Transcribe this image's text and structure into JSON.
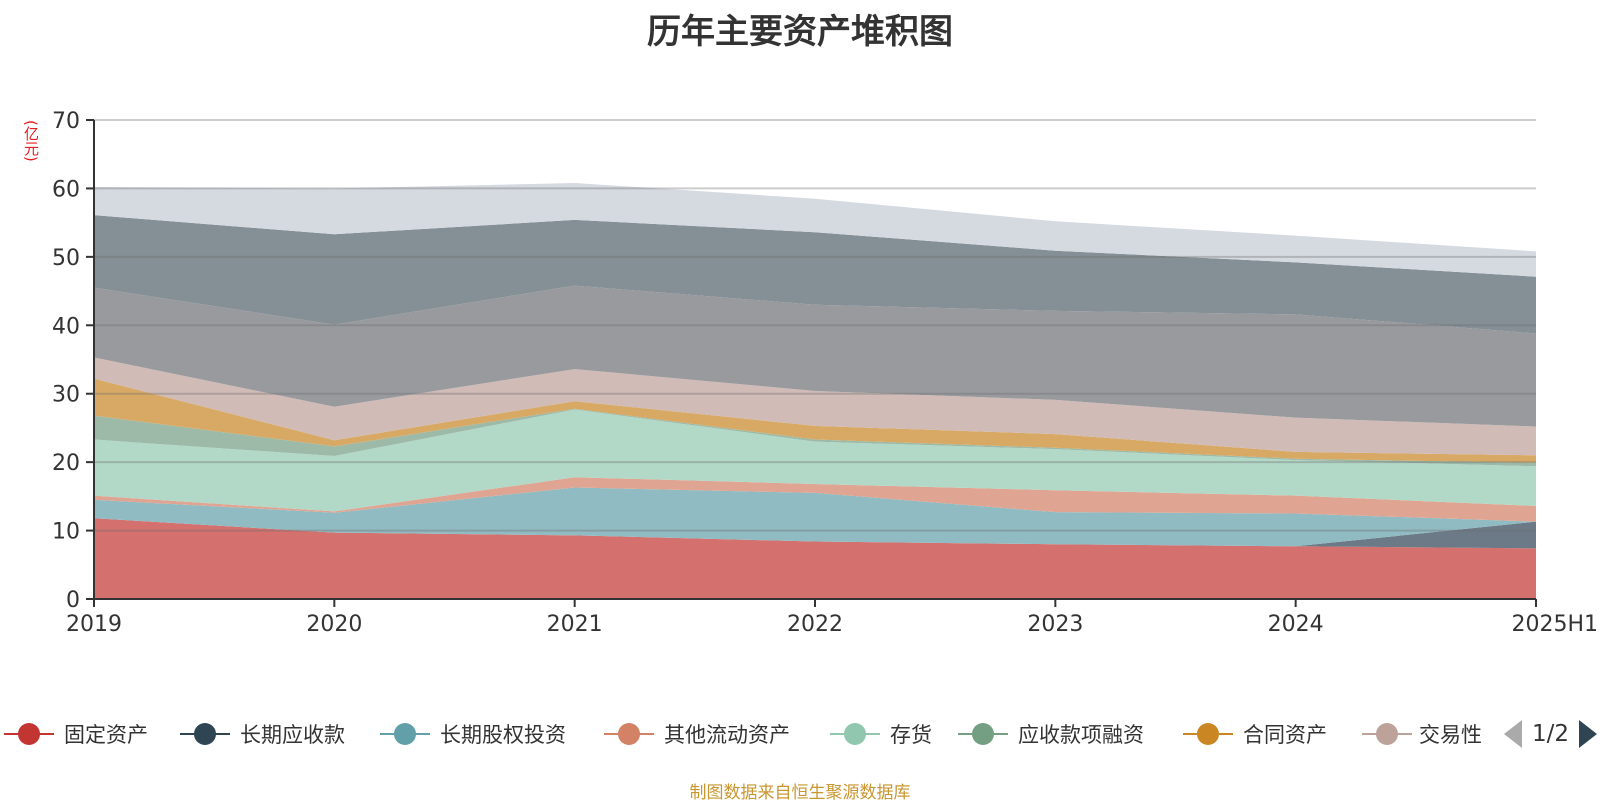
{
  "chart_data": {
    "type": "area",
    "stacked": true,
    "title": "历年主要资产堆积图",
    "ylabel": "(亿元)",
    "xlabel": "",
    "categories": [
      "2019",
      "2020",
      "2021",
      "2022",
      "2023",
      "2024",
      "2025H1"
    ],
    "ylim": [
      0,
      70
    ],
    "yticks": [
      "0",
      "10",
      "20",
      "30",
      "40",
      "50",
      "60",
      "70"
    ],
    "grid": true,
    "series": [
      {
        "name": "固定资产",
        "color": "#c23531",
        "fill": "#d4706e",
        "values": [
          11.8,
          9.7,
          9.3,
          8.4,
          8.0,
          7.7,
          7.4
        ]
      },
      {
        "name": "长期应收款",
        "color": "#2f4554",
        "fill": "#6b7a86",
        "values": [
          0,
          0,
          0,
          0,
          0,
          0,
          3.9
        ]
      },
      {
        "name": "长期股权投资",
        "color": "#61a0a8",
        "fill": "#90bbc2",
        "values": [
          2.7,
          2.9,
          7.0,
          7.1,
          4.7,
          4.8,
          0.0
        ]
      },
      {
        "name": "其他流动资产",
        "color": "#d48265",
        "fill": "#e0a592",
        "values": [
          0.6,
          0.2,
          1.5,
          1.3,
          3.2,
          2.6,
          2.3
        ]
      },
      {
        "name": "存货",
        "color": "#91c7ae",
        "fill": "#b2d8c7",
        "values": [
          8.2,
          8.1,
          9.9,
          6.2,
          6.0,
          5.2,
          5.8
        ]
      },
      {
        "name": "应收款项融资",
        "color": "#749f83",
        "fill": "#9dbaa8",
        "values": [
          3.5,
          1.4,
          0.1,
          0.3,
          0.2,
          0.2,
          0.5
        ]
      },
      {
        "name": "合同资产",
        "color": "#ca8622",
        "fill": "#d8a964",
        "values": [
          5.4,
          0.9,
          1.1,
          2.0,
          2.0,
          1.0,
          1.1
        ]
      },
      {
        "name": "交易性",
        "color": "#bda29a",
        "fill": "#d0bbb6",
        "values": [
          3.1,
          4.9,
          4.7,
          5.1,
          5.0,
          5.0,
          4.2
        ]
      },
      {
        "name": "",
        "color": "#6e7074",
        "fill": "#999a9e",
        "values": [
          10.2,
          12.0,
          12.2,
          12.6,
          13.0,
          15.1,
          13.6
        ]
      },
      {
        "name": "",
        "color": "#546570",
        "fill": "#858f96",
        "values": [
          10.6,
          13.2,
          9.6,
          10.6,
          8.8,
          7.6,
          8.3
        ]
      },
      {
        "name": "",
        "color": "#c4ccd3",
        "fill": "#d5dae1",
        "values": [
          4.1,
          6.7,
          5.4,
          4.9,
          4.3,
          3.9,
          3.7
        ]
      }
    ],
    "legend_position": "bottom"
  },
  "legend": {
    "items": [
      {
        "label": "固定资产",
        "color": "#c23531"
      },
      {
        "label": "长期应收款",
        "color": "#2f4554"
      },
      {
        "label": "长期股权投资",
        "color": "#61a0a8"
      },
      {
        "label": "其他流动资产",
        "color": "#d48265"
      },
      {
        "label": "存货",
        "color": "#91c7ae"
      },
      {
        "label": "应收款项融资",
        "color": "#749f83"
      },
      {
        "label": "合同资产",
        "color": "#ca8622"
      },
      {
        "label": "交易性",
        "color": "#bda29a"
      }
    ],
    "page": "1/2"
  },
  "footer": {
    "source": "制图数据来自恒生聚源数据库"
  }
}
